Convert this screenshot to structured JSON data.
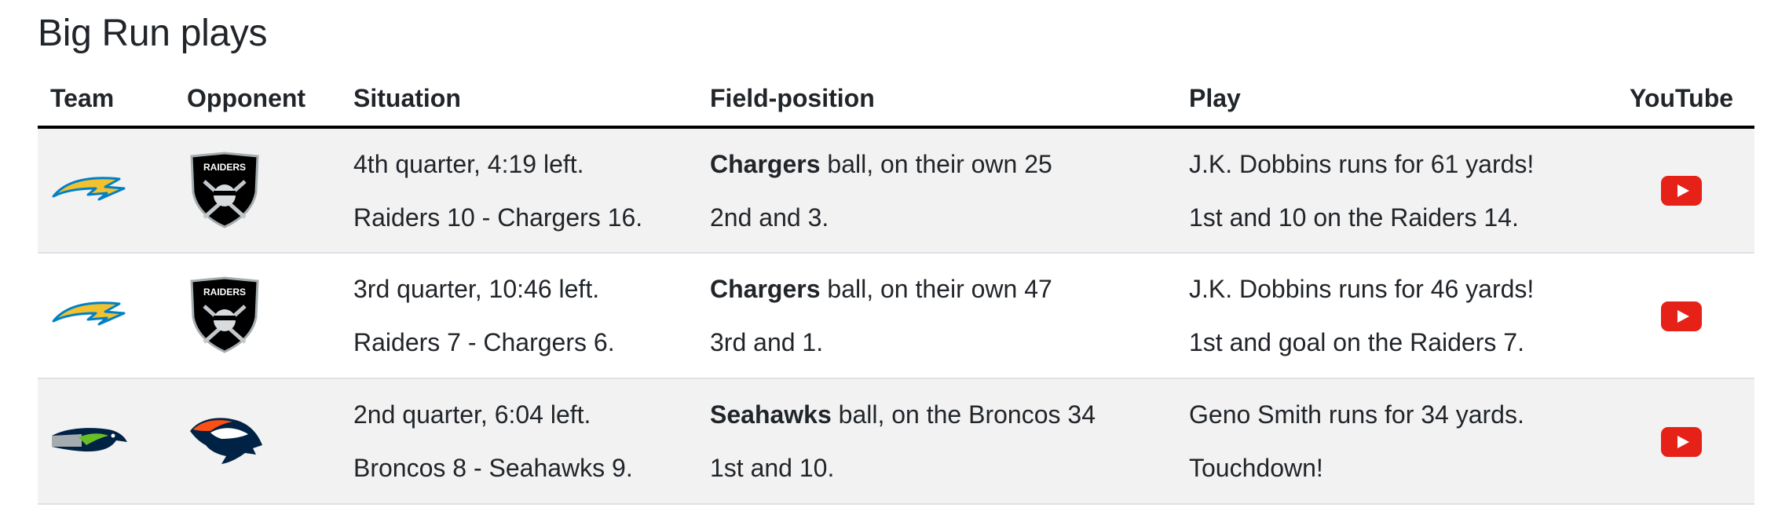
{
  "page": {
    "heading": "Big Run plays"
  },
  "table": {
    "headers": {
      "team": "Team",
      "opponent": "Opponent",
      "situation": "Situation",
      "field_position": "Field-position",
      "play": "Play",
      "youtube": "YouTube"
    },
    "rows": [
      {
        "team_logo": "chargers-logo",
        "opponent_logo": "raiders-logo",
        "opponent_logo_text": "RAIDERS",
        "situation_line1": "4th quarter, 4:19 left.",
        "situation_line2": "Raiders 10 - Chargers 16.",
        "field_team": "Chargers",
        "field_rest": " ball, on their own 25",
        "field_line2": "2nd and 3.",
        "play_line1": "J.K. Dobbins runs for 61 yards!",
        "play_line2": "1st and 10 on the Raiders 14.",
        "youtube_icon": "youtube-play-icon"
      },
      {
        "team_logo": "chargers-logo",
        "opponent_logo": "raiders-logo",
        "opponent_logo_text": "RAIDERS",
        "situation_line1": "3rd quarter, 10:46 left.",
        "situation_line2": "Raiders 7 - Chargers 6.",
        "field_team": "Chargers",
        "field_rest": " ball, on their own 47",
        "field_line2": "3rd and 1.",
        "play_line1": "J.K. Dobbins runs for 46 yards!",
        "play_line2": "1st and goal on the Raiders 7.",
        "youtube_icon": "youtube-play-icon"
      },
      {
        "team_logo": "seahawks-logo",
        "opponent_logo": "broncos-logo",
        "situation_line1": "2nd quarter, 6:04 left.",
        "situation_line2": "Broncos 8 - Seahawks 9.",
        "field_team": "Seahawks",
        "field_rest": " ball, on the Broncos 34",
        "field_line2": "1st and 10.",
        "play_line1": "Geno Smith runs for 34 yards.",
        "play_line2": "Touchdown!",
        "youtube_icon": "youtube-play-icon"
      }
    ]
  },
  "colors": {
    "youtube_red": "#e62117",
    "stripe": "#f2f2f2",
    "chargers_gold": "#f2c12e",
    "chargers_blue": "#0080c6",
    "seahawks_navy": "#002244",
    "broncos_orange": "#fb4f14"
  }
}
